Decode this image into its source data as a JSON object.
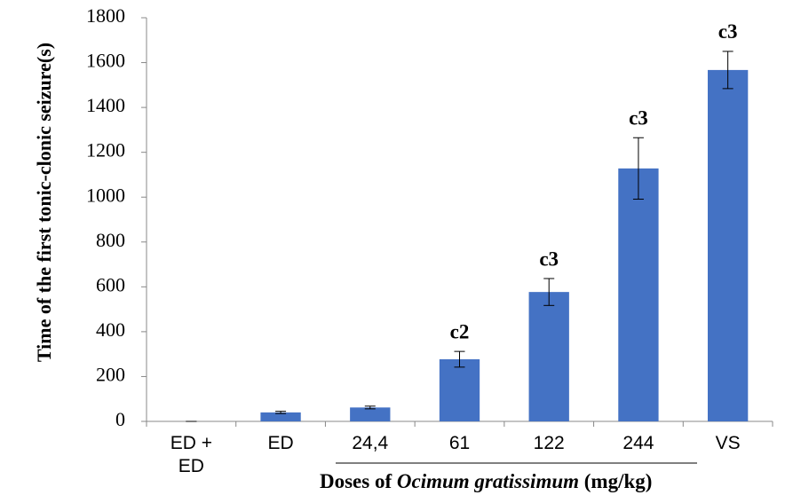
{
  "chart_data": {
    "type": "bar",
    "y_label": "Time of the first tonic-clonic seizure(s)",
    "x_label": [
      "Doses of ",
      "Ocimum gratissimum",
      " (mg/kg)"
    ],
    "categories": [
      "ED + ED",
      "ED",
      "24,4",
      "61",
      "122",
      "244",
      "VS"
    ],
    "values": [
      0,
      40,
      62,
      277,
      577,
      1128,
      1567
    ],
    "errors": [
      0,
      5,
      6,
      35,
      60,
      137,
      83
    ],
    "annotations": [
      null,
      null,
      null,
      "c2",
      "c3",
      "c3",
      "c3"
    ],
    "color": "#4472c4",
    "ylim": [
      0,
      1800
    ],
    "yticks": [
      0,
      200,
      400,
      600,
      800,
      1000,
      1200,
      1400,
      1600,
      1800
    ],
    "grid": false
  }
}
